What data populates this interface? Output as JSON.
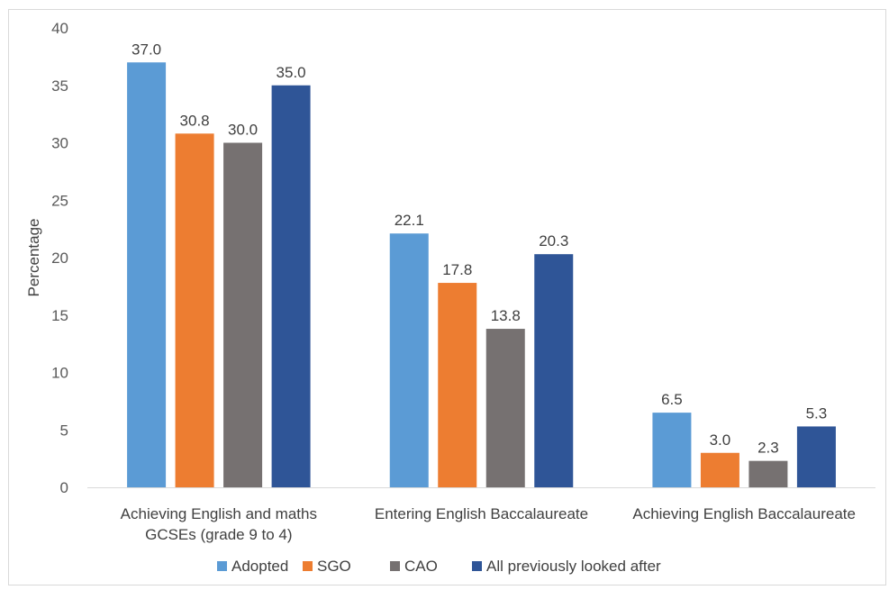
{
  "chart_data": {
    "type": "bar",
    "title": "",
    "ylabel": "Percentage",
    "xlabel": "",
    "ylim": [
      0,
      40
    ],
    "yticks": [
      0,
      5,
      10,
      15,
      20,
      25,
      30,
      35,
      40
    ],
    "grid": false,
    "legend_position": "bottom",
    "categories": [
      [
        "Achieving English and maths",
        "GCSEs (grade 9 to 4)"
      ],
      [
        "Entering English Baccalaureate"
      ],
      [
        "Achieving English Baccalaureate"
      ]
    ],
    "series": [
      {
        "name": "Adopted",
        "color": "#5b9bd5",
        "values": [
          37.0,
          22.1,
          6.5
        ],
        "labels": [
          "37.0",
          "22.1",
          "6.5"
        ]
      },
      {
        "name": "SGO",
        "color": "#ed7d31",
        "values": [
          30.8,
          17.8,
          3.0
        ],
        "labels": [
          "30.8",
          "17.8",
          "3.0"
        ]
      },
      {
        "name": "CAO",
        "color": "#767171",
        "values": [
          30.0,
          13.8,
          2.3
        ],
        "labels": [
          "30.0",
          "13.8",
          "2.3"
        ]
      },
      {
        "name": "All previously looked after",
        "color": "#2f5597",
        "values": [
          35.0,
          20.3,
          5.3
        ],
        "labels": [
          "35.0",
          "20.3",
          "5.3"
        ]
      }
    ]
  }
}
